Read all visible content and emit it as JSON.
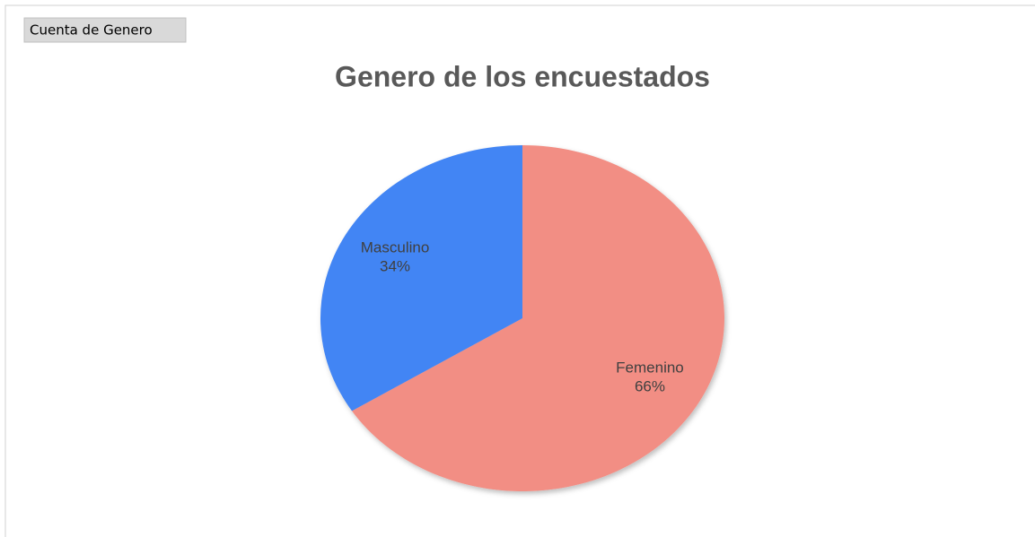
{
  "field_button": "Cuenta de Genero",
  "chart_data": {
    "type": "pie",
    "title": "Genero de los encuestados",
    "categories": [
      "Femenino",
      "Masculino"
    ],
    "values": [
      66,
      34
    ],
    "value_labels": [
      "66%",
      "34%"
    ],
    "colors": [
      "#f28e84",
      "#4285f4"
    ]
  }
}
